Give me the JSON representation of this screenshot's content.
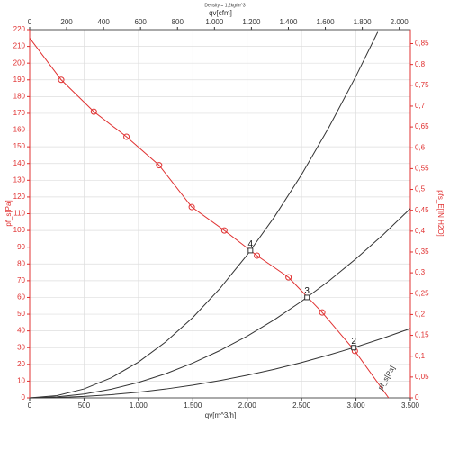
{
  "chart_data": {
    "type": "line",
    "title": "Density = 1,2kg/m^3",
    "x_label": "qv[m^3/h]",
    "x2_label": "qv[cfm]",
    "y_label": "pf_s[Pa]",
    "y2_label": "pfs_E[IN H2O]",
    "xlim": [
      0,
      3500
    ],
    "xticks": [
      0,
      500,
      {
        "value": 1000,
        "label": "1.000"
      },
      {
        "value": 1500,
        "label": "1.500"
      },
      {
        "value": 2000,
        "label": "2.000"
      },
      {
        "value": 2500,
        "label": "2.500"
      },
      {
        "value": 3000,
        "label": "3.000"
      },
      {
        "value": 3500,
        "label": "3.500"
      }
    ],
    "x2lim": [
      0,
      2060
    ],
    "x2ticks": [
      0,
      200,
      400,
      600,
      800,
      {
        "value": 1000,
        "label": "1.000"
      },
      {
        "value": 1200,
        "label": "1.200"
      },
      {
        "value": 1400,
        "label": "1.400"
      },
      {
        "value": 1600,
        "label": "1.600"
      },
      {
        "value": 1800,
        "label": "1.800"
      },
      {
        "value": 2000,
        "label": "2.000"
      }
    ],
    "ylim": [
      0,
      220
    ],
    "yticks": [
      0,
      10,
      20,
      30,
      40,
      50,
      60,
      70,
      80,
      90,
      100,
      110,
      120,
      130,
      140,
      150,
      160,
      170,
      180,
      190,
      200,
      210,
      220
    ],
    "y2lim": [
      0,
      0.8835
    ],
    "y2ticks": [
      0,
      {
        "value": 0.05,
        "label": "0,05"
      },
      {
        "value": 0.1,
        "label": "0,1"
      },
      {
        "value": 0.15,
        "label": "0,15"
      },
      {
        "value": 0.2,
        "label": "0,2"
      },
      {
        "value": 0.25,
        "label": "0,25"
      },
      {
        "value": 0.3,
        "label": "0,3"
      },
      {
        "value": 0.35,
        "label": "0,35"
      },
      {
        "value": 0.4,
        "label": "0,4"
      },
      {
        "value": 0.45,
        "label": "0,45"
      },
      {
        "value": 0.5,
        "label": "0,5"
      },
      {
        "value": 0.55,
        "label": "0,55"
      },
      {
        "value": 0.6,
        "label": "0,6"
      },
      {
        "value": 0.65,
        "label": "0,65"
      },
      {
        "value": 0.7,
        "label": "0,7"
      },
      {
        "value": 0.75,
        "label": "0,75"
      },
      {
        "value": 0.8,
        "label": "0,8"
      },
      {
        "value": 0.85,
        "label": "0,85"
      }
    ],
    "grid": true,
    "series": [
      {
        "name": "pf_s[Pa]",
        "color": "#e03030",
        "markers": true,
        "x": [
          0,
          290,
          590,
          890,
          1190,
          1490,
          1790,
          2090,
          2380,
          2690,
          2990,
          3300
        ],
        "y": [
          215,
          190,
          171,
          156,
          139,
          114,
          100,
          85,
          72,
          51,
          28,
          0
        ]
      },
      {
        "color": "#333333",
        "x": [
          0,
          250,
          500,
          750,
          1000,
          1250,
          1500,
          1750,
          2000,
          2250,
          2500,
          2750,
          3000,
          3200
        ],
        "y": [
          0,
          1.33,
          5.34,
          12.0,
          21.35,
          33.4,
          48.0,
          65.4,
          85.4,
          108.1,
          133.4,
          161.5,
          192.2,
          218.6
        ]
      },
      {
        "color": "#333333",
        "x": [
          0,
          250,
          500,
          750,
          1000,
          1250,
          1500,
          1750,
          2000,
          2250,
          2500,
          2750,
          3000,
          3250,
          3500
        ],
        "y": [
          0,
          0.58,
          2.31,
          5.19,
          9.23,
          14.4,
          20.8,
          28.3,
          36.9,
          46.7,
          57.7,
          69.8,
          83.1,
          97.5,
          113.1
        ]
      },
      {
        "color": "#333333",
        "x": [
          0,
          250,
          500,
          750,
          1000,
          1250,
          1500,
          1750,
          2000,
          2250,
          2500,
          2750,
          3000,
          3250,
          3500
        ],
        "y": [
          0,
          0.21,
          0.85,
          1.9,
          3.38,
          5.28,
          7.61,
          10.35,
          13.52,
          17.1,
          21.1,
          25.6,
          30.4,
          35.7,
          41.4
        ]
      }
    ],
    "operating_points": [
      {
        "label": "4",
        "x": 2030,
        "y": 88
      },
      {
        "label": "3",
        "x": 2550,
        "y": 60
      },
      {
        "label": "2",
        "x": 2980,
        "y": 30
      }
    ]
  }
}
